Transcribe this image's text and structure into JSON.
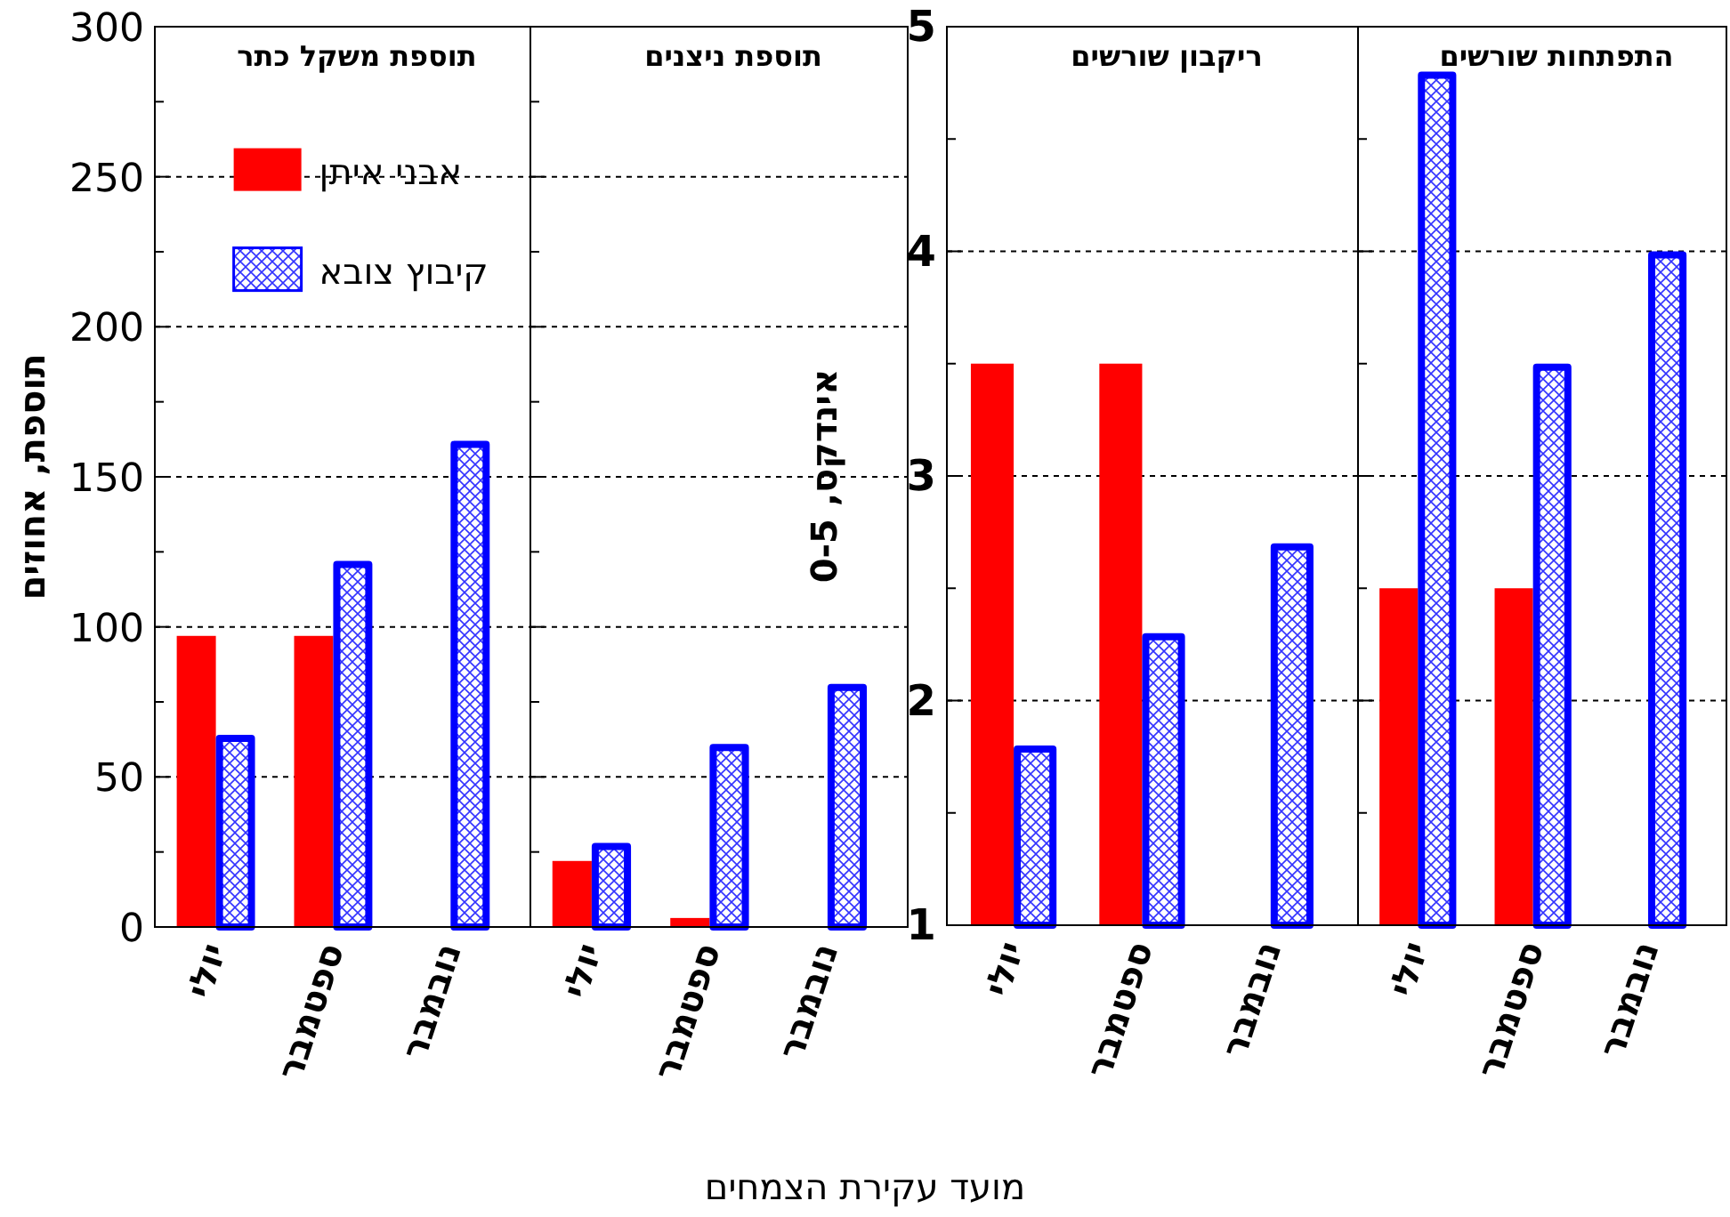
{
  "chart_data": [
    {
      "type": "bar",
      "title": "תוספת משקל כתר",
      "ylabel": "תוספת, אחוזים",
      "xlabel": "מועד עקירת הצמחים",
      "categories": [
        "יולי",
        "ספטמבר",
        "נובמבר"
      ],
      "series": [
        {
          "name": "אבני איתן",
          "color": "#ff0000",
          "values": [
            97,
            97,
            null
          ]
        },
        {
          "name": "קיבוץ צובא",
          "color": "#0000ff",
          "values": [
            64,
            122,
            162
          ]
        }
      ],
      "ylim": [
        0,
        300
      ],
      "yticks": [
        0,
        {
          "value": 25,
          "label": null
        },
        50,
        {
          "value": 75,
          "label": null
        },
        100,
        {
          "value": 125,
          "label": null
        },
        150,
        {
          "value": 175,
          "label": null
        },
        200,
        {
          "value": 225,
          "label": null
        },
        250,
        {
          "value": 275,
          "label": null
        },
        300
      ],
      "grid": "y",
      "legend": "top"
    },
    {
      "type": "bar",
      "title": "תוספת ניצנים",
      "categories": [
        "יולי",
        "ספטמבר",
        "נובמבר"
      ],
      "series": [
        {
          "color": "#ff0000",
          "values": [
            22,
            3,
            null
          ]
        },
        {
          "color": "#0000ff",
          "values": [
            28,
            61,
            81
          ]
        }
      ],
      "ylim": [
        0,
        300
      ],
      "yticks": [
        0,
        {
          "value": 25,
          "label": null
        },
        50,
        {
          "value": 75,
          "label": null
        },
        100,
        {
          "value": 125,
          "label": null
        },
        150,
        {
          "value": 175,
          "label": null
        },
        200,
        {
          "value": 225,
          "label": null
        },
        250,
        {
          "value": 275,
          "label": null
        },
        300
      ],
      "grid": "y",
      "tick_labels": "x"
    },
    {
      "type": "bar",
      "title": "ריקבון שורשים",
      "ylabel": "אינדקס, 0-5",
      "categories": [
        "יולי",
        "ספטמבר",
        "נובמבר"
      ],
      "series": [
        {
          "color": "#ff0000",
          "values": [
            3.5,
            3.5,
            null
          ]
        },
        {
          "color": "#0000ff",
          "values": [
            1.8,
            2.3,
            2.7
          ]
        }
      ],
      "ylim": [
        1,
        5
      ],
      "yticks": [
        1,
        {
          "value": 1.5,
          "label": null
        },
        2,
        {
          "value": 2.5,
          "label": null
        },
        3,
        {
          "value": 3.5,
          "label": null
        },
        4,
        {
          "value": 4.5,
          "label": null
        },
        5
      ],
      "grid": "y"
    },
    {
      "type": "bar",
      "title": "התפתחות שורשים",
      "categories": [
        "יולי",
        "ספטמבר",
        "נובמבר"
      ],
      "series": [
        {
          "color": "#ff0000",
          "values": [
            2.5,
            2.5,
            null
          ]
        },
        {
          "color": "#0000ff",
          "values": [
            4.8,
            3.5,
            4.0
          ]
        }
      ],
      "ylim": [
        1,
        5
      ],
      "yticks": [
        1,
        {
          "value": 1.5,
          "label": null
        },
        2,
        {
          "value": 2.5,
          "label": null
        },
        3,
        {
          "value": 3.5,
          "label": null
        },
        4,
        {
          "value": 4.5,
          "label": null
        },
        5
      ],
      "grid": "y",
      "tick_labels": "x"
    }
  ]
}
